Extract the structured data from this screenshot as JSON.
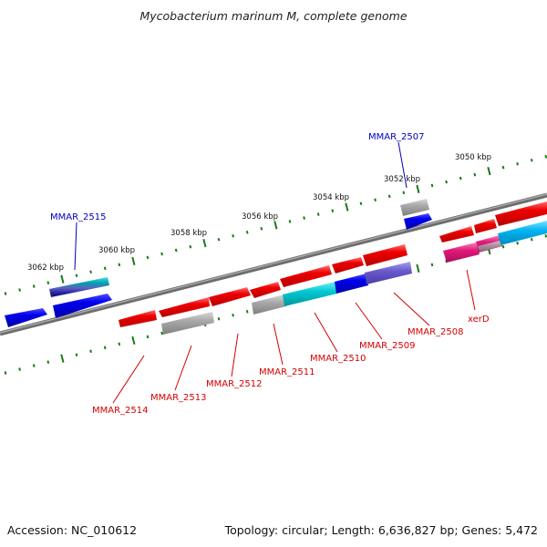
{
  "title": "Mycobacterium marinum M, complete genome",
  "footer": {
    "accession": "Accession: NC_010612",
    "summary": "Topology: circular; Length: 6,636,827 bp; Genes: 5,472"
  },
  "scale_labels": [
    "3062 kbp",
    "3060 kbp",
    "3058 kbp",
    "3056 kbp",
    "3054 kbp",
    "3052 kbp",
    "3050 kbp"
  ],
  "labels": {
    "forward": [
      "MMAR_2515",
      "MMAR_2507"
    ],
    "reverse": [
      "MMAR_2514",
      "MMAR_2513",
      "MMAR_2512",
      "MMAR_2511",
      "MMAR_2510",
      "MMAR_2509",
      "MMAR_2508",
      "xerD"
    ]
  },
  "colors": {
    "backbone": "#808080",
    "ticks": "#1a7a1a",
    "forward_label": "#0000c0",
    "reverse_label": "#d40000",
    "cds_forward": "#0000ee",
    "cds_reverse": "#ee0000",
    "gene_gray": "#a0a0a0",
    "cyan": "#00c8d2",
    "purple": "#6a5acd",
    "magenta": "#e0187a",
    "sky": "#00b4f0"
  }
}
